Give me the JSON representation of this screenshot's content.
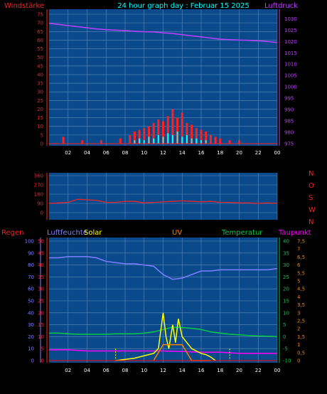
{
  "header": {
    "title": "24 hour graph day : Februar 15 2025",
    "left_label": "Windstärke",
    "right_label": "Luftdruck"
  },
  "colors": {
    "plot_bg": "#0a4a8c",
    "grid": "#5a8ab8",
    "wind": "#ff2020",
    "gust": "#00ffff",
    "pressure": "#c040ff",
    "direction": "#ff2020",
    "humidity": "#8080ff",
    "solar": "#ffff00",
    "uv": "#ff8000",
    "temperature": "#00cc44",
    "dewpoint": "#ff00ff",
    "rain": "#ff0000"
  },
  "chart_data": [
    {
      "type": "bar+line",
      "title": "24 hour graph day : Februar 15 2025",
      "left_axis": {
        "label": "Windstärke",
        "ticks": [
          "0",
          "5",
          "10",
          "15",
          "20",
          "25",
          "30",
          "35",
          "40",
          "45",
          "50",
          "55",
          "60",
          "65",
          "70",
          "75"
        ],
        "range": [
          0,
          75
        ]
      },
      "right_axis": {
        "label": "Luftdruck",
        "ticks": [
          "975",
          "980",
          "985",
          "990",
          "995",
          "1000",
          "1005",
          "1010",
          "1015",
          "1020",
          "1025",
          "1030"
        ],
        "range": [
          975,
          1032
        ]
      },
      "x_ticks": [
        "02",
        "04",
        "06",
        "08",
        "10",
        "12",
        "14",
        "16",
        "18",
        "20",
        "22",
        "00"
      ],
      "series": [
        {
          "name": "Luftdruck",
          "type": "line",
          "x": [
            0,
            1,
            2,
            3,
            4,
            5,
            6,
            7,
            8,
            9,
            10,
            11,
            12,
            13,
            14,
            15,
            16,
            17,
            18,
            19,
            20,
            21,
            22,
            23,
            24
          ],
          "values": [
            1028,
            1027.5,
            1027,
            1026.5,
            1026,
            1025.5,
            1025.2,
            1025,
            1024.8,
            1024.5,
            1024.3,
            1024.2,
            1023.8,
            1023.5,
            1023,
            1022.5,
            1022,
            1021.5,
            1021,
            1020.8,
            1020.6,
            1020.5,
            1020.3,
            1020,
            1019.5
          ]
        },
        {
          "name": "Windstärke",
          "type": "bar",
          "x": [
            1.5,
            3.5,
            5.5,
            7.5,
            8.5,
            9,
            9.5,
            10,
            10.5,
            11,
            11.5,
            12,
            12.5,
            13,
            13.5,
            14,
            14.5,
            15,
            15.5,
            16,
            16.5,
            17,
            17.5,
            18,
            19,
            20
          ],
          "values": [
            4,
            2,
            2,
            3,
            5,
            7,
            8,
            9,
            10,
            12,
            14,
            13,
            16,
            20,
            15,
            18,
            12,
            11,
            9,
            8,
            7,
            5,
            4,
            3,
            2,
            2
          ]
        },
        {
          "name": "Böen",
          "type": "bar",
          "x": [
            9,
            9.5,
            10,
            10.5,
            11,
            11.5,
            12,
            12.5,
            13,
            13.5,
            14,
            14.5,
            15,
            15.5,
            16,
            16.5
          ],
          "values": [
            2,
            3,
            2,
            4,
            3,
            5,
            4,
            6,
            5,
            7,
            4,
            5,
            3,
            3,
            2,
            2
          ]
        }
      ]
    },
    {
      "type": "line",
      "left_axis": {
        "ticks": [
          "0",
          "90",
          "180",
          "270",
          "360"
        ],
        "range": [
          0,
          360
        ]
      },
      "right_axis": {
        "ticks": [
          "N",
          "W",
          "S",
          "O",
          "N"
        ]
      },
      "series": [
        {
          "name": "Windrichtung",
          "type": "line",
          "x": [
            0,
            1,
            2,
            3,
            4,
            5,
            6,
            7,
            8,
            9,
            10,
            11,
            12,
            13,
            14,
            15,
            16,
            17,
            18,
            19,
            20,
            21,
            22,
            23,
            24
          ],
          "values": [
            90,
            95,
            100,
            130,
            125,
            120,
            100,
            100,
            110,
            110,
            95,
            100,
            105,
            110,
            115,
            110,
            105,
            110,
            100,
            100,
            95,
            95,
            90,
            95,
            90
          ]
        }
      ]
    },
    {
      "type": "line",
      "labels": {
        "rain": "Regen",
        "humidity": "Luftfeuchte",
        "solar": "Solar",
        "uv": "UV",
        "temperature": "Temperatur",
        "dewpoint": "Taupunkt"
      },
      "left_axis": {
        "label": "Regen",
        "ticks": [
          "0",
          "10",
          "20",
          "30",
          "40",
          "50",
          "60",
          "70",
          "80",
          "90",
          "100"
        ],
        "range": [
          0,
          100
        ]
      },
      "rain_axis": {
        "ticks": [
          "0",
          "5",
          "10",
          "15",
          "20",
          "25",
          "30",
          "35",
          "40",
          "45",
          "50"
        ]
      },
      "temp_axis": {
        "ticks": [
          "-10",
          "-5",
          "0",
          "5",
          "10",
          "15",
          "20",
          "25",
          "30",
          "35",
          "40"
        ],
        "range": [
          -10,
          40
        ]
      },
      "uv_axis": {
        "ticks": [
          "0",
          "0,5",
          "1",
          "1,5",
          "2",
          "2,5",
          "3",
          "3,5",
          "4",
          "4,5",
          "5",
          "5,5",
          "6",
          "6,5",
          "7",
          "7,5"
        ],
        "range": [
          0,
          7.5
        ]
      },
      "x_ticks": [
        "02",
        "04",
        "06",
        "08",
        "10",
        "12",
        "14",
        "16",
        "18",
        "20",
        "22",
        "00"
      ],
      "series": [
        {
          "name": "Luftfeuchte",
          "type": "line",
          "x": [
            0,
            1,
            2,
            3,
            4,
            5,
            6,
            7,
            8,
            9,
            10,
            11,
            12,
            13,
            14,
            15,
            16,
            17,
            18,
            19,
            20,
            21,
            22,
            23,
            24
          ],
          "values": [
            86,
            86,
            87,
            87,
            87,
            86,
            83,
            82,
            81,
            81,
            80,
            79,
            72,
            68,
            69,
            72,
            75,
            75,
            76,
            76,
            76,
            76,
            76,
            76,
            77
          ]
        },
        {
          "name": "Temperatur",
          "type": "line",
          "x": [
            0,
            1,
            2,
            3,
            4,
            5,
            6,
            7,
            8,
            9,
            10,
            11,
            12,
            13,
            14,
            15,
            16,
            17,
            18,
            19,
            20,
            21,
            22,
            23,
            24
          ],
          "values": [
            1.5,
            1.5,
            1.2,
            1.0,
            1.0,
            1.0,
            1.0,
            1.2,
            1.2,
            1.2,
            1.5,
            2,
            3,
            4,
            3.8,
            3.5,
            3,
            2,
            1.5,
            1,
            0.8,
            0.5,
            0.3,
            0.2,
            0
          ]
        },
        {
          "name": "Taupunkt",
          "type": "line",
          "x": [
            0,
            2,
            4,
            6,
            8,
            10,
            12,
            14,
            16,
            18,
            20,
            22,
            24
          ],
          "values": [
            -5.5,
            -5.5,
            -6,
            -6,
            -6,
            -6,
            -6,
            -6.2,
            -6.5,
            -6.5,
            -7,
            -7,
            -7
          ]
        },
        {
          "name": "Solar",
          "type": "line",
          "x": [
            7,
            8,
            9,
            10,
            11,
            11.5,
            12,
            12.3,
            12.6,
            13,
            13.3,
            13.6,
            14,
            14.5,
            15,
            15.5,
            16,
            16.5,
            17,
            17.5
          ],
          "values": [
            0,
            1,
            2,
            4,
            6,
            10,
            40,
            20,
            10,
            30,
            15,
            35,
            20,
            15,
            10,
            8,
            6,
            5,
            3,
            0
          ]
        },
        {
          "name": "UV",
          "type": "line",
          "x": [
            11,
            11.5,
            12,
            13,
            14,
            15,
            16,
            17
          ],
          "values": [
            0,
            0.5,
            1.0,
            1.0,
            1.0,
            0,
            0,
            0
          ]
        }
      ]
    }
  ]
}
